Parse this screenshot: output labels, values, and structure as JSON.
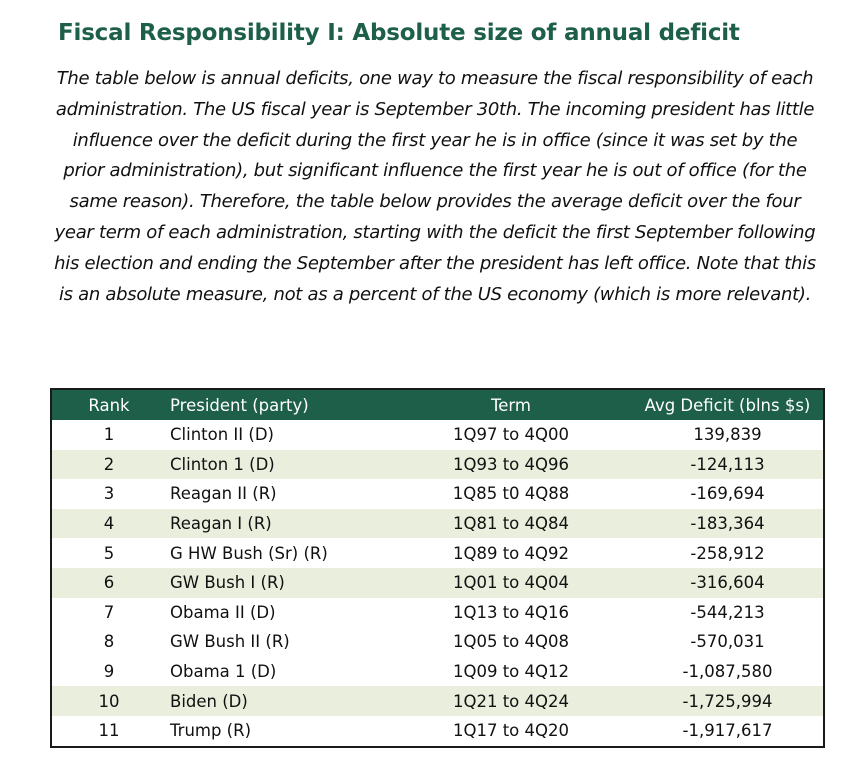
{
  "title": "Fiscal Responsibility I: Absolute size of annual deficit",
  "description": "The table below is annual deficits, one way to measure the fiscal responsibility of each administration.  The US fiscal year is September 30th. The incoming president has little influence over the deficit during the first year he is in office (since it was set by the prior administration), but significant influence the first year he is out of office (for the same reason). Therefore, the table below provides the average deficit over the four year term of each administration, starting with the deficit the first September following his election and ending the September after the president has left office.  Note that this is an absolute measure, not as a percent of the US economy (which is more relevant).",
  "table": {
    "headers": {
      "rank": "Rank",
      "president": "President (party)",
      "term": "Term",
      "deficit": "Avg Deficit (blns $s)"
    },
    "rows": [
      {
        "rank": "1",
        "president": "Clinton II (D)",
        "term": "1Q97 to 4Q00",
        "deficit": "139,839"
      },
      {
        "rank": "2",
        "president": "Clinton 1 (D)",
        "term": "1Q93 to 4Q96",
        "deficit": "-124,113"
      },
      {
        "rank": "3",
        "president": "Reagan II (R)",
        "term": "1Q85 t0 4Q88",
        "deficit": "-169,694"
      },
      {
        "rank": "4",
        "president": "Reagan I (R)",
        "term": "1Q81 to 4Q84",
        "deficit": "-183,364"
      },
      {
        "rank": "5",
        "president": "G HW Bush (Sr) (R)",
        "term": "1Q89 to 4Q92",
        "deficit": "-258,912"
      },
      {
        "rank": "6",
        "president": "GW Bush I (R)",
        "term": "1Q01 to 4Q04",
        "deficit": "-316,604"
      },
      {
        "rank": "7",
        "president": "Obama II (D)",
        "term": "1Q13 to 4Q16",
        "deficit": "-544,213"
      },
      {
        "rank": "8",
        "president": "GW Bush II (R)",
        "term": "1Q05 to 4Q08",
        "deficit": "-570,031"
      },
      {
        "rank": "9",
        "president": "Obama 1 (D)",
        "term": "1Q09 to 4Q12",
        "deficit": "-1,087,580"
      },
      {
        "rank": "10",
        "president": "Biden (D)",
        "term": "1Q21 to 4Q24",
        "deficit": "-1,725,994"
      },
      {
        "rank": "11",
        "president": "Trump (R)",
        "term": "1Q17 to 4Q20",
        "deficit": "-1,917,617"
      }
    ]
  },
  "colors": {
    "accent": "#1d5f48",
    "header_text": "#ffffff",
    "alt_row": "#e9eedd"
  }
}
